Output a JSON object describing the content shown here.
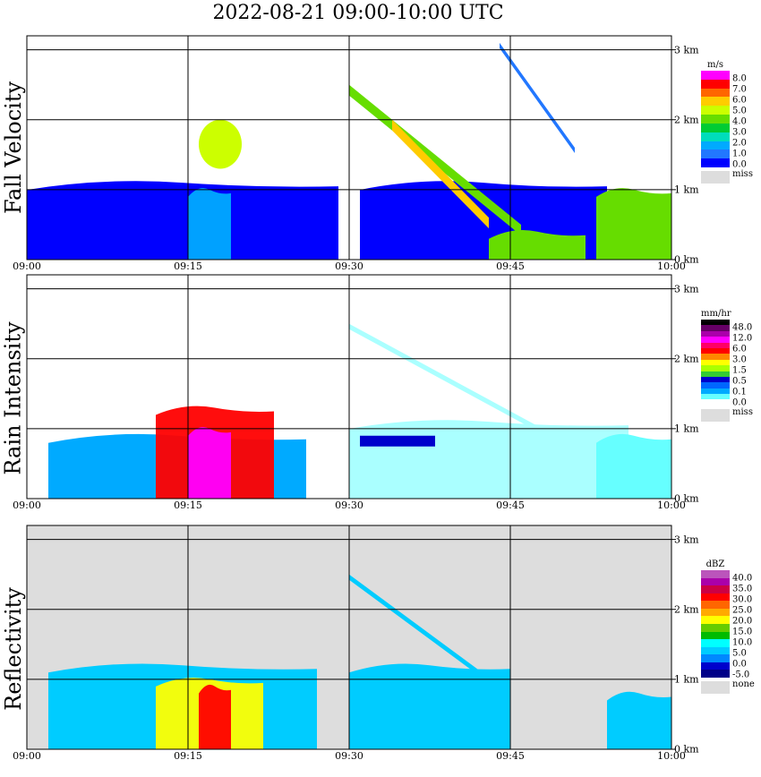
{
  "title": "2022-08-21   09:00-10:00 UTC",
  "x_ticks": [
    "09:00",
    "09:15",
    "09:30",
    "09:45",
    "10:00"
  ],
  "y_ticks": [
    "0 km",
    "1 km",
    "2 km",
    "3 km"
  ],
  "panels": [
    {
      "id": "fall",
      "ylabel": "Fall Velocity",
      "unit": "m/s",
      "colorbar": {
        "colors": [
          "#ff00ff",
          "#ff0000",
          "#ff6600",
          "#ffcc00",
          "#ccff00",
          "#66dd00",
          "#00cc33",
          "#00ddbb",
          "#00aaff",
          "#2277ff",
          "#0000ff"
        ],
        "labels": [
          "8.0",
          "7.0",
          "6.0",
          "5.0",
          "4.0",
          "3.0",
          "2.0",
          "1.0",
          "0.0"
        ],
        "missing_label": "miss",
        "missing_color": "#dddddd"
      }
    },
    {
      "id": "rain",
      "ylabel": "Rain Intensity",
      "unit": "mm/hr",
      "colorbar": {
        "colors": [
          "#000000",
          "#660066",
          "#aa00aa",
          "#ff00ff",
          "#ff0066",
          "#ff0000",
          "#ff8800",
          "#ffff00",
          "#aaff00",
          "#33cc33",
          "#0000cc",
          "#0066ff",
          "#00aaff",
          "#66ffff",
          "#ffffff"
        ],
        "labels": [
          "48.0",
          "12.0",
          "6.0",
          "3.0",
          "1.5",
          "0.5",
          "0.1",
          "0.0"
        ],
        "missing_label": "miss",
        "missing_color": "#dddddd"
      }
    },
    {
      "id": "refl",
      "ylabel": "Reflectivity",
      "unit": "dBZ",
      "colorbar": {
        "colors": [
          "#bb55bb",
          "#aa00aa",
          "#cc0044",
          "#ff0000",
          "#ff6600",
          "#ffaa00",
          "#ffff00",
          "#66cc00",
          "#00bb00",
          "#00ffff",
          "#00ccff",
          "#0088ff",
          "#0000cc",
          "#000088"
        ],
        "labels": [
          "40.0",
          "35.0",
          "30.0",
          "25.0",
          "20.0",
          "15.0",
          "10.0",
          "5.0",
          "0.0",
          "-5.0"
        ],
        "missing_label": "none",
        "missing_color": "#dddddd"
      }
    }
  ],
  "chart_data": {
    "type": "heatmap",
    "title": "2022-08-21   09:00-10:00 UTC",
    "x_range": [
      "09:00",
      "10:00"
    ],
    "y_range_km": [
      0,
      3.2
    ],
    "grid": true,
    "series": [
      {
        "name": "Fall Velocity",
        "features": [
          {
            "shape": "layer",
            "start": "09:00",
            "end": "09:29",
            "top_km": 1.1,
            "value": 0.5
          },
          {
            "shape": "layer",
            "start": "09:31",
            "end": "09:54",
            "top_km": 1.1,
            "value": 0.5
          },
          {
            "shape": "core",
            "start": "09:15",
            "end": "09:19",
            "top_km": 1.0,
            "value": 2.5
          },
          {
            "shape": "cell",
            "start": "09:16",
            "end": "09:20",
            "bottom_km": 1.3,
            "top_km": 2.0,
            "value": 5.0
          },
          {
            "shape": "band",
            "start": "09:30",
            "end": "09:46",
            "start_top_km": 2.5,
            "end_top_km": 0.5,
            "value": 4.0
          },
          {
            "shape": "band",
            "start": "09:34",
            "end": "09:43",
            "start_top_km": 2.0,
            "end_top_km": 0.6,
            "value": 6.0
          },
          {
            "shape": "layer",
            "start": "09:43",
            "end": "09:52",
            "top_km": 0.4,
            "value": 4.0
          },
          {
            "shape": "layer",
            "start": "09:53",
            "end": "10:00",
            "top_km": 1.0,
            "value": 4.0
          },
          {
            "shape": "streak",
            "start": "09:44",
            "end": "09:51",
            "start_top_km": 3.1,
            "end_top_km": 1.6,
            "value": 1.5
          }
        ]
      },
      {
        "name": "Rain Intensity",
        "features": [
          {
            "shape": "layer",
            "start": "09:02",
            "end": "09:26",
            "top_km": 0.9,
            "value": 0.3
          },
          {
            "shape": "core",
            "start": "09:12",
            "end": "09:23",
            "top_km": 1.3,
            "value": 8.0
          },
          {
            "shape": "core",
            "start": "09:15",
            "end": "09:19",
            "top_km": 1.0,
            "value": 12.0
          },
          {
            "shape": "layer",
            "start": "09:30",
            "end": "09:56",
            "top_km": 1.1,
            "value": 0.05
          },
          {
            "shape": "band",
            "start": "09:31",
            "end": "09:38",
            "top_km": 0.9,
            "value": 0.5
          },
          {
            "shape": "streak",
            "start": "09:30",
            "end": "09:48",
            "start_top_km": 2.5,
            "end_top_km": 1.0,
            "value": 0.05
          },
          {
            "shape": "layer",
            "start": "09:53",
            "end": "10:00",
            "top_km": 0.9,
            "value": 0.1
          }
        ]
      },
      {
        "name": "Reflectivity",
        "features": [
          {
            "shape": "layer",
            "start": "09:02",
            "end": "09:27",
            "top_km": 1.2,
            "value": 8.0
          },
          {
            "shape": "core",
            "start": "09:12",
            "end": "09:22",
            "top_km": 1.0,
            "value": 22.0
          },
          {
            "shape": "core",
            "start": "09:16",
            "end": "09:19",
            "top_km": 0.9,
            "value": 32.0
          },
          {
            "shape": "layer",
            "start": "09:30",
            "end": "09:45",
            "top_km": 1.2,
            "value": 6.0
          },
          {
            "shape": "streak",
            "start": "09:30",
            "end": "09:45",
            "start_top_km": 2.5,
            "end_top_km": 0.8,
            "value": 5.0
          },
          {
            "shape": "layer",
            "start": "09:54",
            "end": "10:00",
            "top_km": 0.8,
            "value": 8.0
          }
        ]
      }
    ]
  }
}
